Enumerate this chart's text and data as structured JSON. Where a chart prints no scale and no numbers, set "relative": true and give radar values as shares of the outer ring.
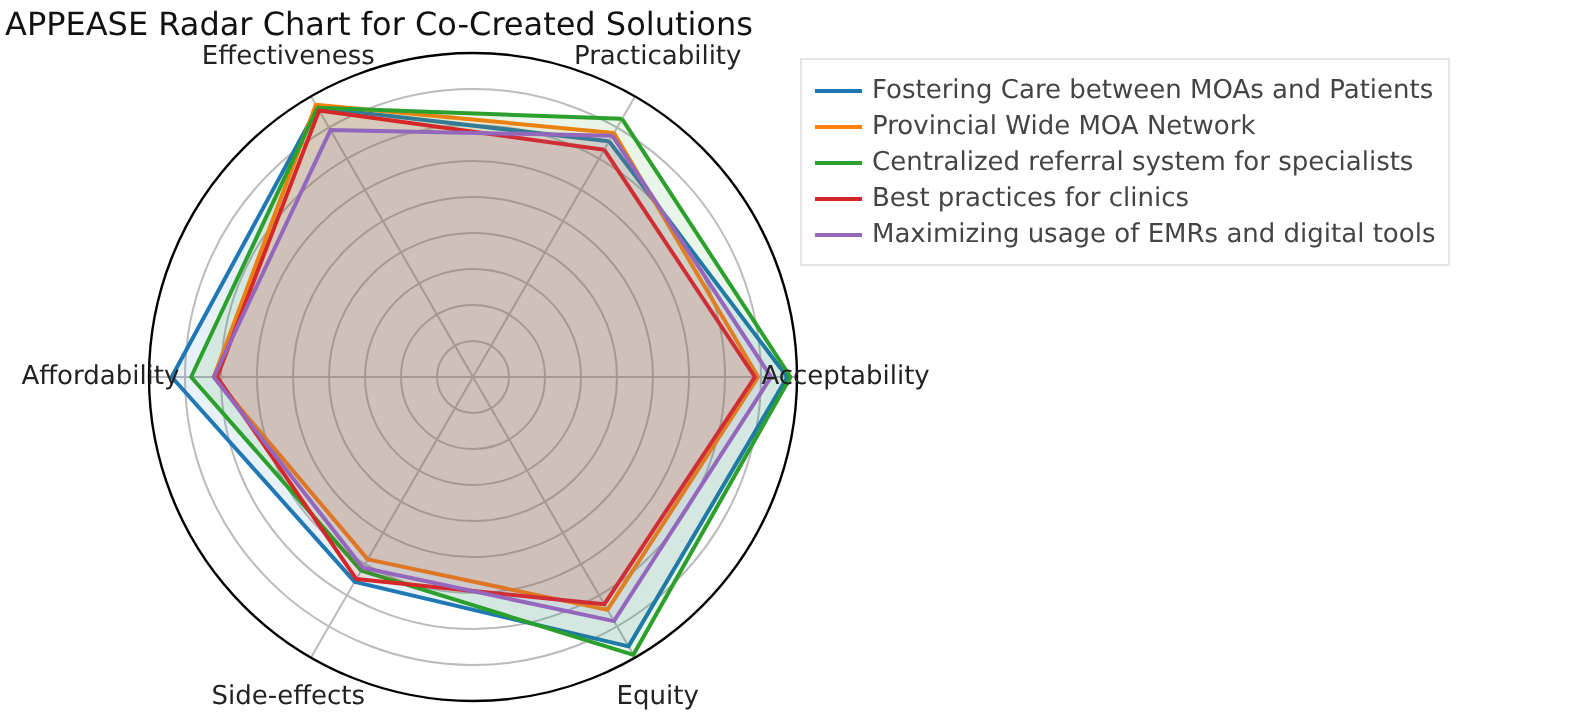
{
  "chart_data": {
    "type": "radar",
    "title": "APPEASE Radar Chart for Co-Created Solutions",
    "relative": true,
    "grid": true,
    "legend": "top right",
    "categories": [
      "Practicability",
      "Acceptability",
      "Equity",
      "Side-effects",
      "Affordability",
      "Effectiveness"
    ],
    "series": [
      {
        "name": "Fostering Care between MOAs and Patients",
        "color": "#1f77b4",
        "values": [
          0.84,
          0.97,
          0.96,
          0.73,
          0.93,
          0.96
        ]
      },
      {
        "name": "Provincial Wide MOA Network",
        "color": "#ff7f0e",
        "values": [
          0.87,
          0.88,
          0.83,
          0.65,
          0.8,
          0.97
        ]
      },
      {
        "name": "Centralized referral system for specialists",
        "color": "#2ca02c",
        "values": [
          0.92,
          0.98,
          0.99,
          0.69,
          0.87,
          0.96
        ]
      },
      {
        "name": "Best practices for clinics",
        "color": "#d62728",
        "values": [
          0.81,
          0.87,
          0.81,
          0.72,
          0.79,
          0.95
        ]
      },
      {
        "name": "Maximizing usage of EMRs and digital tools",
        "color": "#9467bd",
        "values": [
          0.86,
          0.92,
          0.87,
          0.68,
          0.8,
          0.88
        ]
      }
    ]
  }
}
